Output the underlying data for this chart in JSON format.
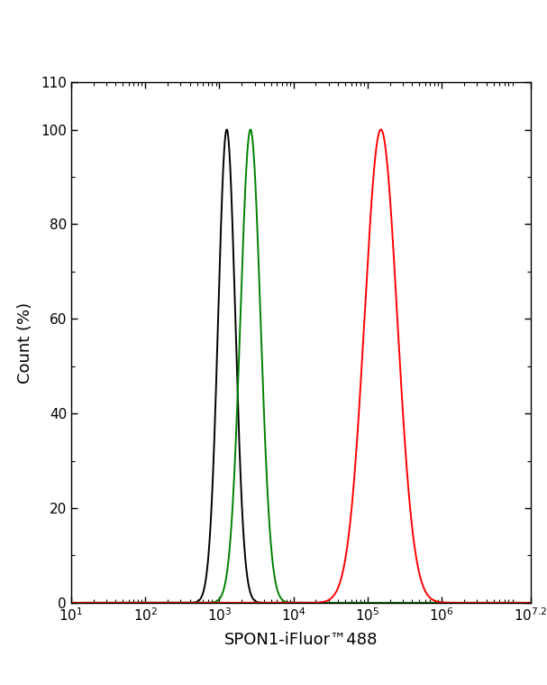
{
  "xlabel": "SPON1-iFluor™488",
  "ylabel": "Count (%)",
  "xlim_log": [
    1,
    7.2
  ],
  "ylim": [
    0,
    110
  ],
  "yticks": [
    0,
    20,
    40,
    60,
    80,
    100,
    110
  ],
  "ytick_labels": [
    "0",
    "20",
    "40",
    "60",
    "80",
    "100",
    "110"
  ],
  "xtick_exponents": [
    1,
    2,
    3,
    4,
    5,
    6
  ],
  "xtick_last_label": "10$^{7.2}$",
  "xtick_last_pos": 7.2,
  "black_peak_log": 3.1,
  "black_sigma_log": 0.115,
  "green_peak_log": 3.42,
  "green_sigma_log": 0.135,
  "red_peak_log": 5.18,
  "red_sigma_log": 0.22,
  "line_colors": [
    "black",
    "green",
    "red"
  ],
  "background_color": "#ffffff",
  "linewidth": 1.4
}
